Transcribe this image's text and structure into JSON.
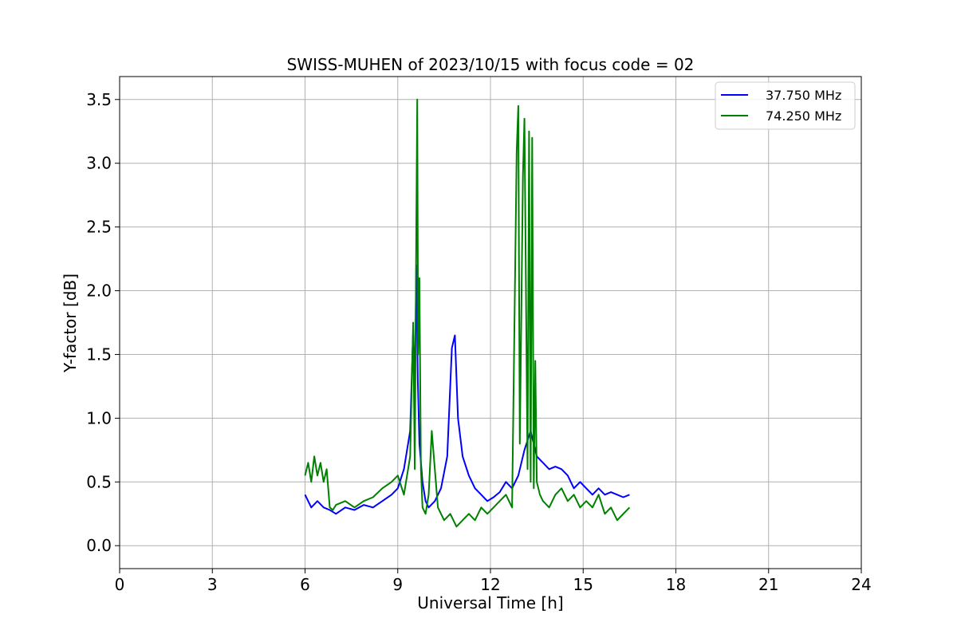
{
  "chart_data": {
    "type": "line",
    "title": "SWISS-MUHEN of 2023/10/15 with focus code = 02",
    "xlabel": "Universal Time [h]",
    "ylabel": "Y-factor [dB]",
    "xlim": [
      0,
      24
    ],
    "ylim": [
      -0.18,
      3.68
    ],
    "xticks": [
      0,
      3,
      6,
      9,
      12,
      15,
      18,
      21,
      24
    ],
    "yticks": [
      0.0,
      0.5,
      1.0,
      1.5,
      2.0,
      2.5,
      3.0,
      3.5
    ],
    "xtick_labels": [
      "0",
      "3",
      "6",
      "9",
      "12",
      "15",
      "18",
      "21",
      "24"
    ],
    "ytick_labels": [
      "0.0",
      "0.5",
      "1.0",
      "1.5",
      "2.0",
      "2.5",
      "3.0",
      "3.5"
    ],
    "grid": true,
    "legend_position": "top-right",
    "series": [
      {
        "name": "37.750 MHz",
        "color": "#0000ff",
        "x": [
          6.0,
          6.2,
          6.4,
          6.6,
          6.8,
          7.0,
          7.3,
          7.6,
          7.9,
          8.2,
          8.5,
          8.8,
          9.0,
          9.2,
          9.4,
          9.5,
          9.55,
          9.6,
          9.65,
          9.7,
          9.8,
          9.9,
          10.0,
          10.2,
          10.4,
          10.6,
          10.75,
          10.85,
          10.95,
          11.1,
          11.3,
          11.5,
          11.7,
          11.9,
          12.1,
          12.3,
          12.5,
          12.7,
          12.9,
          13.1,
          13.3,
          13.5,
          13.7,
          13.9,
          14.1,
          14.3,
          14.5,
          14.7,
          14.9,
          15.1,
          15.3,
          15.5,
          15.7,
          15.9,
          16.1,
          16.3,
          16.5
        ],
        "y": [
          0.4,
          0.3,
          0.35,
          0.3,
          0.28,
          0.25,
          0.3,
          0.28,
          0.32,
          0.3,
          0.35,
          0.4,
          0.45,
          0.6,
          0.9,
          1.7,
          1.2,
          2.2,
          1.3,
          0.8,
          0.5,
          0.35,
          0.3,
          0.35,
          0.45,
          0.7,
          1.55,
          1.65,
          1.0,
          0.7,
          0.55,
          0.45,
          0.4,
          0.35,
          0.38,
          0.42,
          0.5,
          0.45,
          0.55,
          0.75,
          0.9,
          0.7,
          0.65,
          0.6,
          0.62,
          0.6,
          0.55,
          0.45,
          0.5,
          0.45,
          0.4,
          0.45,
          0.4,
          0.42,
          0.4,
          0.38,
          0.4
        ]
      },
      {
        "name": "74.250 MHz",
        "color": "#008000",
        "x": [
          6.0,
          6.1,
          6.2,
          6.3,
          6.4,
          6.5,
          6.6,
          6.7,
          6.8,
          6.9,
          7.0,
          7.3,
          7.6,
          7.9,
          8.2,
          8.5,
          8.8,
          9.0,
          9.2,
          9.4,
          9.5,
          9.55,
          9.6,
          9.63,
          9.66,
          9.7,
          9.75,
          9.8,
          9.9,
          10.0,
          10.1,
          10.3,
          10.5,
          10.7,
          10.9,
          11.1,
          11.3,
          11.5,
          11.7,
          11.9,
          12.1,
          12.3,
          12.5,
          12.7,
          12.85,
          12.9,
          12.95,
          13.05,
          13.1,
          13.2,
          13.25,
          13.3,
          13.35,
          13.4,
          13.45,
          13.5,
          13.6,
          13.7,
          13.9,
          14.1,
          14.3,
          14.5,
          14.7,
          14.9,
          15.1,
          15.3,
          15.5,
          15.7,
          15.9,
          16.1,
          16.3,
          16.5
        ],
        "y": [
          0.55,
          0.65,
          0.5,
          0.7,
          0.55,
          0.65,
          0.5,
          0.6,
          0.3,
          0.28,
          0.32,
          0.35,
          0.3,
          0.35,
          0.38,
          0.45,
          0.5,
          0.55,
          0.4,
          0.7,
          1.75,
          0.6,
          2.5,
          3.5,
          1.5,
          2.1,
          0.6,
          0.3,
          0.25,
          0.4,
          0.9,
          0.3,
          0.2,
          0.25,
          0.15,
          0.2,
          0.25,
          0.2,
          0.3,
          0.25,
          0.3,
          0.35,
          0.4,
          0.3,
          3.1,
          3.45,
          0.8,
          2.9,
          3.35,
          0.6,
          3.25,
          0.5,
          3.2,
          0.45,
          1.45,
          0.5,
          0.4,
          0.35,
          0.3,
          0.4,
          0.45,
          0.35,
          0.4,
          0.3,
          0.35,
          0.3,
          0.4,
          0.25,
          0.3,
          0.2,
          0.25,
          0.3
        ]
      }
    ]
  }
}
